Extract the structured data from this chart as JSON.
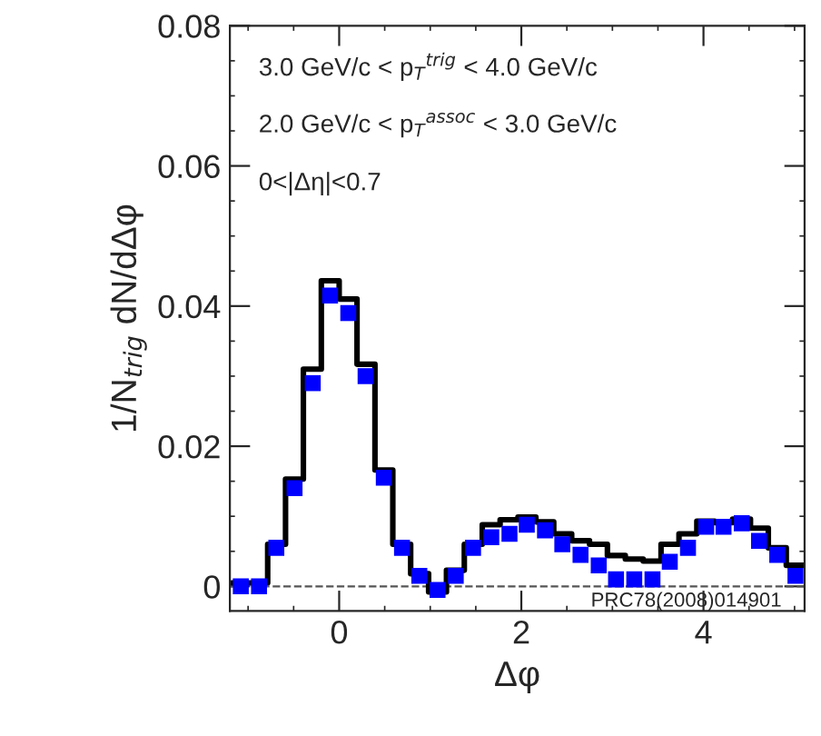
{
  "chart_data": {
    "type": "step",
    "xlabel": "Δφ",
    "ylabel": "1/N$_{trig}$ dN/dΔφ",
    "xlim": [
      -1.2,
      5.11
    ],
    "ylim": [
      -0.0035,
      0.08
    ],
    "xticks": [
      0,
      2,
      4
    ],
    "yticks": [
      0,
      0.02,
      0.04,
      0.06,
      0.08
    ],
    "series": [
      {
        "color": "#000000",
        "x": [
          -1.178,
          -0.982,
          -0.785,
          -0.589,
          -0.393,
          -0.196,
          0,
          0.196,
          0.393,
          0.589,
          0.785,
          0.982,
          1.178,
          1.374,
          1.571,
          1.767,
          1.963,
          2.16,
          2.356,
          2.553,
          2.749,
          2.945,
          3.142,
          3.338,
          3.534,
          3.731,
          3.927,
          4.123,
          4.32,
          4.516,
          4.712,
          4.909,
          5.105
        ],
        "values": [
          0.0005,
          0.0005,
          0.006,
          0.0153,
          0.031,
          0.0436,
          0.041,
          0.0317,
          0.0166,
          0.006,
          0.0018,
          -0.0008,
          0.0023,
          0.006,
          0.0088,
          0.0095,
          0.0099,
          0.0092,
          0.0075,
          0.0065,
          0.006,
          0.0044,
          0.0039,
          0.0036,
          0.006,
          0.0075,
          0.0093,
          0.0091,
          0.0096,
          0.0083,
          0.0055,
          0.003,
          0.003
        ]
      },
      {
        "type": "scatter",
        "color": "#0000ff",
        "marker": "square",
        "x": [
          -1.08,
          -0.88,
          -0.69,
          -0.49,
          -0.29,
          -0.1,
          0.1,
          0.29,
          0.49,
          0.69,
          0.88,
          1.08,
          1.28,
          1.47,
          1.67,
          1.87,
          2.06,
          2.26,
          2.45,
          2.65,
          2.85,
          3.04,
          3.24,
          3.44,
          3.63,
          3.83,
          4.03,
          4.22,
          4.42,
          4.61,
          4.81,
          5.01
        ],
        "values": [
          0,
          0,
          0.0055,
          0.014,
          0.029,
          0.0415,
          0.039,
          0.03,
          0.0155,
          0.0055,
          0.0015,
          -0.0005,
          0.0015,
          0.0055,
          0.007,
          0.0075,
          0.0088,
          0.008,
          0.006,
          0.0045,
          0.003,
          0.001,
          0.001,
          0.001,
          0.0035,
          0.0055,
          0.0085,
          0.0085,
          0.009,
          0.0065,
          0.0045,
          0.0015
        ]
      }
    ],
    "ref_lines": [
      {
        "axis": "y",
        "value": 0,
        "color": "#555555",
        "line_style": "dashed"
      }
    ],
    "annotations": [
      "3.0 GeV/c < p$_{T}$$^{trig}$ < 4.0 GeV/c",
      "2.0 GeV/c < p$_{T}$$^{assoc}$ < 3.0 GeV/c",
      "0<|Δη|<0.7",
      "PRC78(2008)014901"
    ],
    "grid": false,
    "legend": false
  }
}
